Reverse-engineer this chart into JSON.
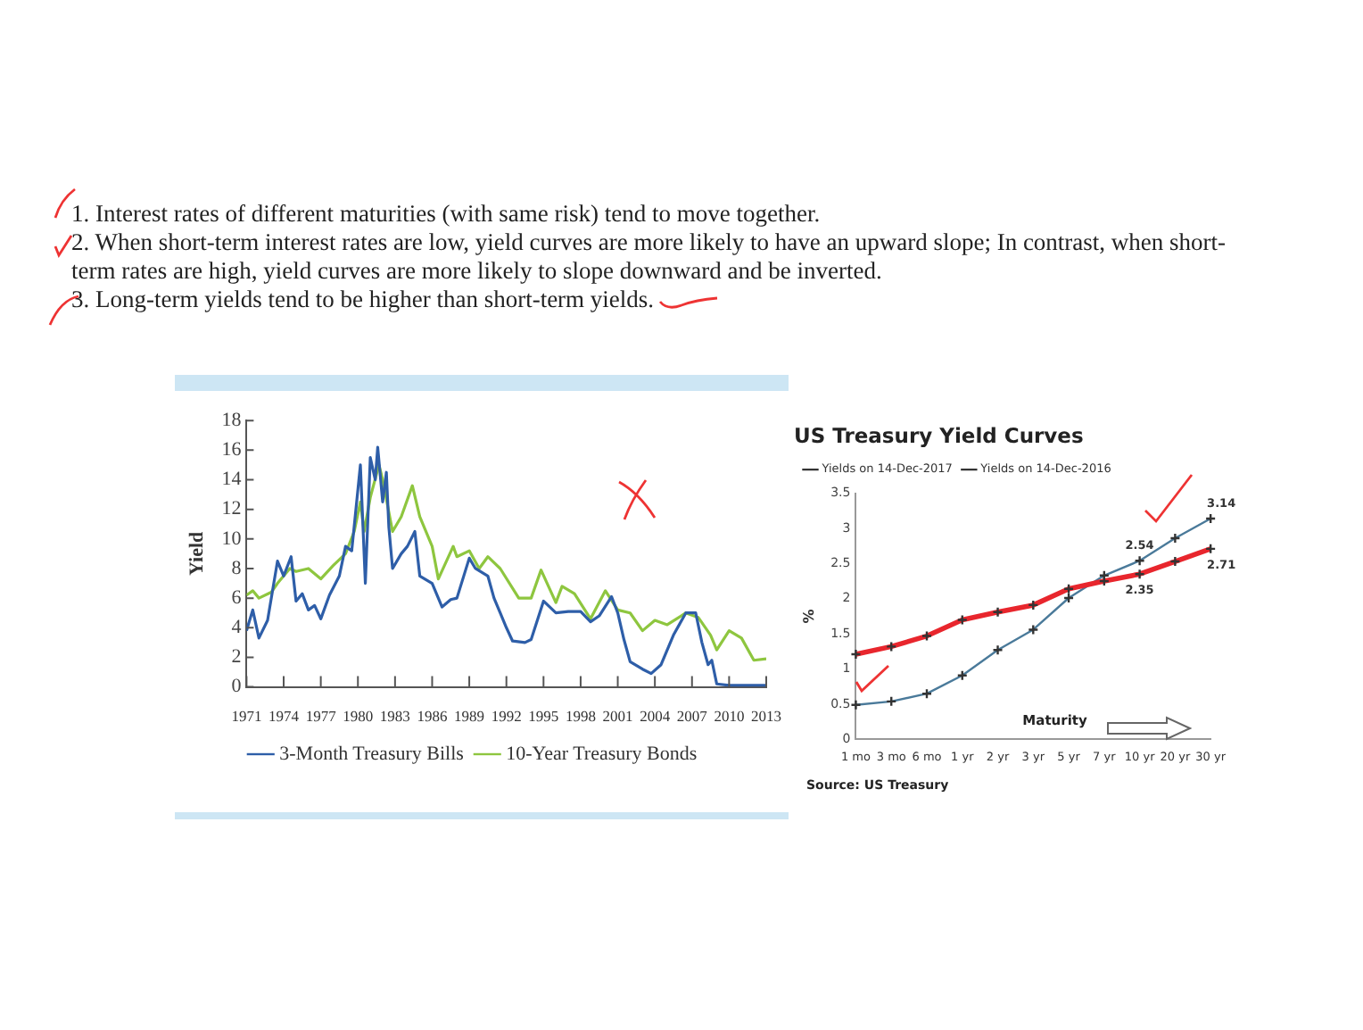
{
  "chart_data": [
    {
      "type": "line",
      "ylabel": "Yield",
      "annotations": [
        "1. Interest rates of different maturities (with same risk) tend to move together.",
        "2. When short-term interest rates are low, yield curves are more likely to have an upward slope; In contrast, when short-term rates are high, yield curves are more likely to slope downward and be inverted.",
        "3. Long-term yields tend to be higher than short-term yields."
      ],
      "xlim": [
        1971,
        2013
      ],
      "xticks": [
        1971,
        1974,
        1977,
        1980,
        1983,
        1986,
        1989,
        1992,
        1995,
        1998,
        2001,
        2004,
        2007,
        2010,
        2013
      ],
      "ylim": [
        0,
        18
      ],
      "yticks": [
        0,
        2,
        4,
        6,
        8,
        10,
        12,
        14,
        16,
        18
      ],
      "legend": "bottom",
      "series": [
        {
          "name": "3-Month Treasury Bills",
          "color": "#2e5ea8",
          "x": [
            1971,
            1971.5,
            1972,
            1972.7,
            1973.5,
            1974,
            1974.6,
            1975,
            1975.5,
            1976,
            1976.5,
            1977,
            1977.7,
            1978.5,
            1979,
            1979.5,
            1980.2,
            1980.6,
            1981,
            1981.4,
            1981.6,
            1982,
            1982.3,
            1982.5,
            1982.8,
            1983.5,
            1984,
            1984.6,
            1985,
            1986,
            1986.8,
            1987.5,
            1988,
            1989,
            1989.5,
            1990.5,
            1991,
            1991.5,
            1992,
            1992.5,
            1993.5,
            1994,
            1995,
            1996,
            1997,
            1998,
            1998.8,
            1999.5,
            2000.5,
            2001,
            2001.5,
            2002,
            2003,
            2003.7,
            2004.5,
            2005.5,
            2006.5,
            2007.3,
            2007.8,
            2008.3,
            2008.6,
            2009,
            2010,
            2013
          ],
          "values": [
            3.8,
            5.2,
            3.3,
            4.5,
            8.5,
            7.5,
            8.8,
            5.8,
            6.3,
            5.2,
            5.5,
            4.6,
            6.2,
            7.5,
            9.5,
            9.2,
            15,
            7,
            15.5,
            14,
            16.2,
            12.5,
            14.5,
            10.8,
            8,
            9,
            9.5,
            10.5,
            7.5,
            7,
            5.4,
            5.9,
            6,
            8.7,
            8,
            7.5,
            6,
            5,
            4,
            3.1,
            3,
            3.2,
            5.8,
            5,
            5.1,
            5.1,
            4.4,
            4.8,
            6.1,
            5,
            3.2,
            1.7,
            1.2,
            0.9,
            1.5,
            3.5,
            5,
            5,
            3,
            1.5,
            1.8,
            0.2,
            0.1,
            0.1
          ]
        },
        {
          "name": "10-Year Treasury Bonds",
          "color": "#8ec63f",
          "x": [
            1971,
            1971.5,
            1972,
            1973,
            1973.5,
            1974.5,
            1975,
            1976,
            1977,
            1978,
            1979,
            1979.7,
            1980.2,
            1980.5,
            1981,
            1981.7,
            1982,
            1982.8,
            1983.5,
            1984.4,
            1985,
            1986,
            1986.5,
            1987.7,
            1988,
            1989,
            1989.8,
            1990.5,
            1991.5,
            1993,
            1994,
            1994.8,
            1996,
            1996.5,
            1997.5,
            1998.8,
            2000,
            2001,
            2002,
            2003,
            2004,
            2005,
            2006.5,
            2007.5,
            2008.5,
            2009,
            2010,
            2011,
            2012,
            2013
          ],
          "values": [
            6.2,
            6.5,
            6,
            6.4,
            7,
            8,
            7.8,
            8,
            7.3,
            8.2,
            9,
            10.5,
            12.5,
            10.5,
            12.8,
            15,
            14,
            10.5,
            11.5,
            13.6,
            11.5,
            9.5,
            7.3,
            9.5,
            8.8,
            9.2,
            8,
            8.8,
            8,
            6,
            6,
            7.9,
            5.7,
            6.8,
            6.3,
            4.6,
            6.5,
            5.2,
            5,
            3.8,
            4.5,
            4.2,
            5,
            4.7,
            3.5,
            2.5,
            3.8,
            3.3,
            1.8,
            1.9
          ]
        }
      ]
    },
    {
      "type": "line",
      "title": "US Treasury Yield Curves",
      "ylabel": "%",
      "annotations": [
        "Maturity",
        "Source: US Treasury"
      ],
      "categories": [
        "1 mo",
        "3 mo",
        "6 mo",
        "1 yr",
        "2 yr",
        "3 yr",
        "5 yr",
        "7 yr",
        "10 yr",
        "20 yr",
        "30 yr"
      ],
      "ylim": [
        0,
        3.5
      ],
      "yticks": [
        0,
        0.5,
        1,
        1.5,
        2,
        2.5,
        3,
        3.5
      ],
      "legend": "top",
      "marker": "cross",
      "series": [
        {
          "name": "Yields on 14-Dec-2017",
          "color": "#e8262d",
          "values": [
            1.21,
            1.32,
            1.47,
            1.7,
            1.81,
            1.91,
            2.14,
            2.25,
            2.35,
            2.53,
            2.71
          ],
          "value_labels": [
            null,
            null,
            null,
            null,
            null,
            null,
            null,
            null,
            "2.35",
            null,
            "2.71"
          ]
        },
        {
          "name": "Yields on 14-Dec-2016",
          "color": "#4a7a9a",
          "values": [
            0.49,
            0.54,
            0.65,
            0.91,
            1.27,
            1.56,
            2.01,
            2.33,
            2.54,
            2.86,
            3.14
          ],
          "value_labels": [
            null,
            null,
            null,
            null,
            null,
            null,
            null,
            null,
            "2.54",
            null,
            "3.14"
          ]
        }
      ]
    }
  ]
}
